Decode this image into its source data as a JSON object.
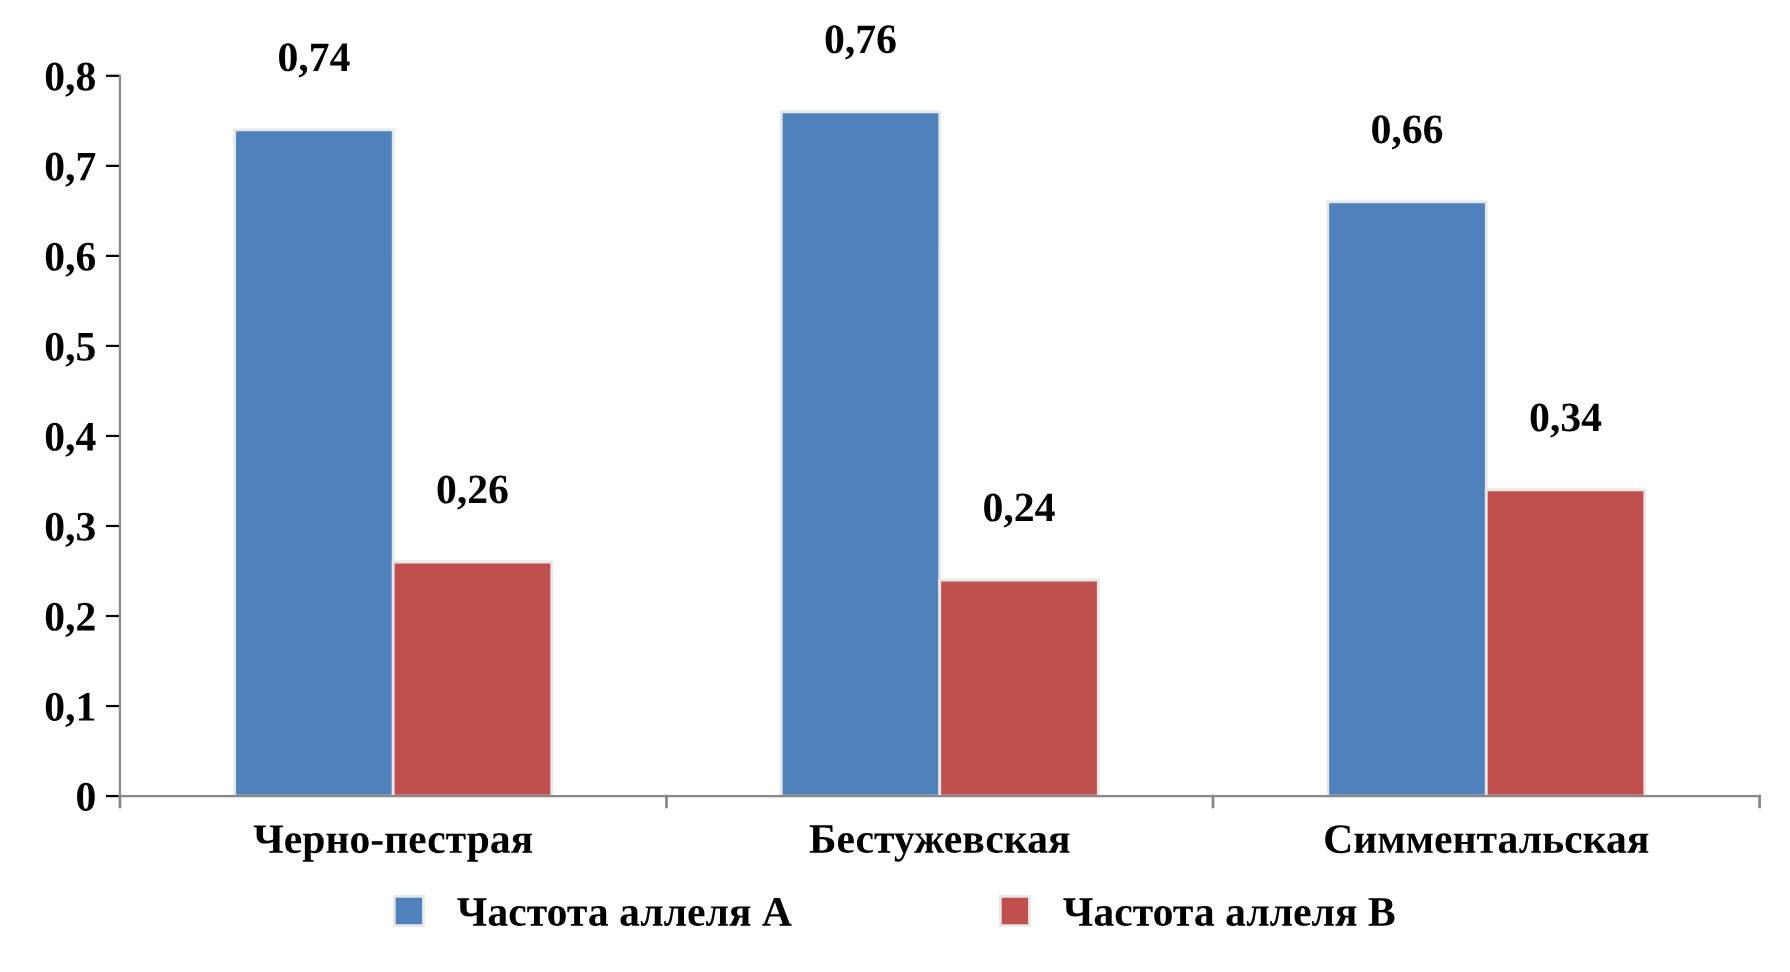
{
  "chart_data": {
    "type": "bar",
    "categories": [
      "Черно-пестрая",
      "Бестужевская",
      "Симментальская"
    ],
    "series": [
      {
        "name": "Частота аллеля А",
        "color": "#4f81bd",
        "values": [
          0.74,
          0.76,
          0.66
        ],
        "value_labels": [
          "0,74",
          "0,76",
          "0,66"
        ]
      },
      {
        "name": "Частота аллеля В",
        "color": "#c0504d",
        "values": [
          0.26,
          0.24,
          0.34
        ],
        "value_labels": [
          "0,26",
          "0,24",
          "0,34"
        ]
      }
    ],
    "ylim": [
      0,
      0.8
    ],
    "yticks": [
      0,
      {
        "value": 0.1,
        "label": "0,1"
      },
      {
        "value": 0.2,
        "label": "0,2"
      },
      {
        "value": 0.3,
        "label": "0,3"
      },
      {
        "value": 0.4,
        "label": "0,4"
      },
      {
        "value": 0.5,
        "label": "0,5"
      },
      {
        "value": 0.6,
        "label": "0,6"
      },
      {
        "value": 0.7,
        "label": "0,7"
      },
      {
        "value": 0.8,
        "label": "0,8"
      }
    ],
    "grid": false,
    "legend": "bottom"
  }
}
